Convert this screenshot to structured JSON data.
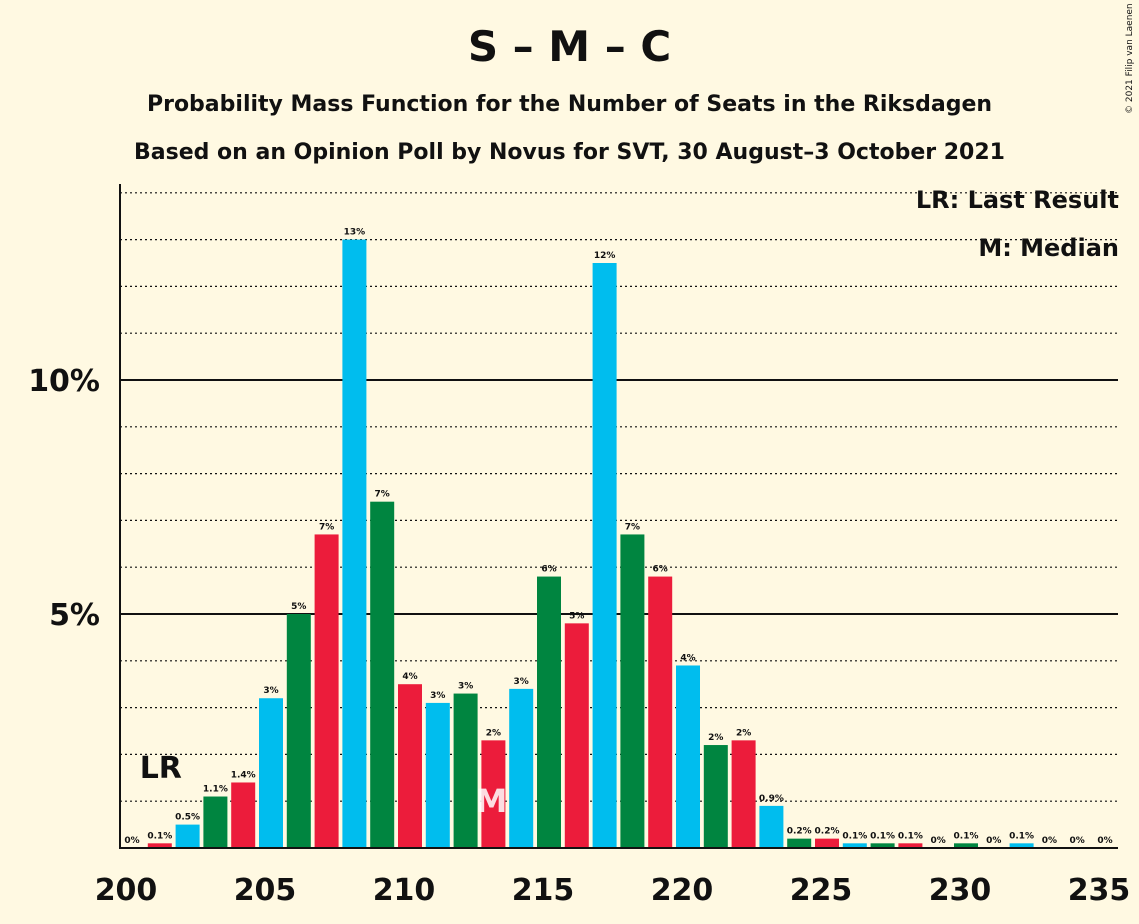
{
  "title": "S – M – C",
  "subtitle1": "Probability Mass Function for the Number of Seats in the Riksdagen",
  "subtitle2": "Based on an Opinion Poll by Novus for SVT, 30 August–3 October 2021",
  "copyright": "© 2021 Filip van Laenen",
  "legend": {
    "lr": "LR: Last Result",
    "median": "M: Median"
  },
  "markers": {
    "lr_label": "LR",
    "lr_seat": 201,
    "median_label": "M",
    "median_seat": 213
  },
  "colors": {
    "background": "#fff9e2",
    "blue": "#00bdee",
    "green": "#008540",
    "red": "#ec1c3b",
    "median_text": "#ffffff"
  },
  "chart_data": {
    "type": "bar",
    "x": [
      200,
      201,
      202,
      203,
      204,
      205,
      206,
      207,
      208,
      209,
      210,
      211,
      212,
      213,
      214,
      215,
      216,
      217,
      218,
      219,
      220,
      221,
      222,
      223,
      224,
      225,
      226,
      227,
      228,
      229,
      230,
      231,
      232,
      233,
      234,
      235
    ],
    "values": [
      0,
      0.1,
      0.5,
      1.1,
      1.4,
      3.2,
      5.0,
      6.7,
      13.0,
      7.4,
      3.5,
      3.1,
      3.3,
      2.3,
      3.4,
      5.8,
      4.8,
      12.5,
      6.7,
      5.8,
      3.9,
      2.2,
      2.3,
      0.9,
      0.2,
      0.2,
      0.1,
      0.1,
      0.1,
      0,
      0.1,
      0,
      0.1,
      0,
      0,
      0
    ],
    "labels": [
      "0%",
      "0.1%",
      "0.5%",
      "1.1%",
      "1.4%",
      "3%",
      "5%",
      "7%",
      "13%",
      "7%",
      "4%",
      "3%",
      "3%",
      "2%",
      "3%",
      "6%",
      "5%",
      "12%",
      "7%",
      "6%",
      "4%",
      "2%",
      "2%",
      "0.9%",
      "0.2%",
      "0.2%",
      "0.1%",
      "0.1%",
      "0.1%",
      "0%",
      "0.1%",
      "0%",
      "0.1%",
      "0%",
      "0%",
      "0%"
    ],
    "bar_colors": [
      "blue",
      "red",
      "blue",
      "green",
      "red",
      "blue",
      "green",
      "red",
      "blue",
      "green",
      "red",
      "blue",
      "green",
      "red",
      "blue",
      "green",
      "red",
      "blue",
      "green",
      "red",
      "blue",
      "green",
      "red",
      "blue",
      "green",
      "red",
      "blue",
      "green",
      "red",
      "blue",
      "green",
      "red",
      "blue",
      "green",
      "red",
      "blue"
    ],
    "xticks": [
      200,
      205,
      210,
      215,
      220,
      225,
      230,
      235
    ],
    "xtick_labels": [
      "200",
      "205",
      "210",
      "215",
      "220",
      "225",
      "230",
      "235"
    ],
    "yticks": [
      5,
      10
    ],
    "ytick_labels": [
      "5%",
      "10%"
    ],
    "xlim": [
      200,
      235
    ],
    "ylim": [
      0,
      14
    ],
    "grid": "dotted every 1%, solid at 5% and 10%"
  }
}
